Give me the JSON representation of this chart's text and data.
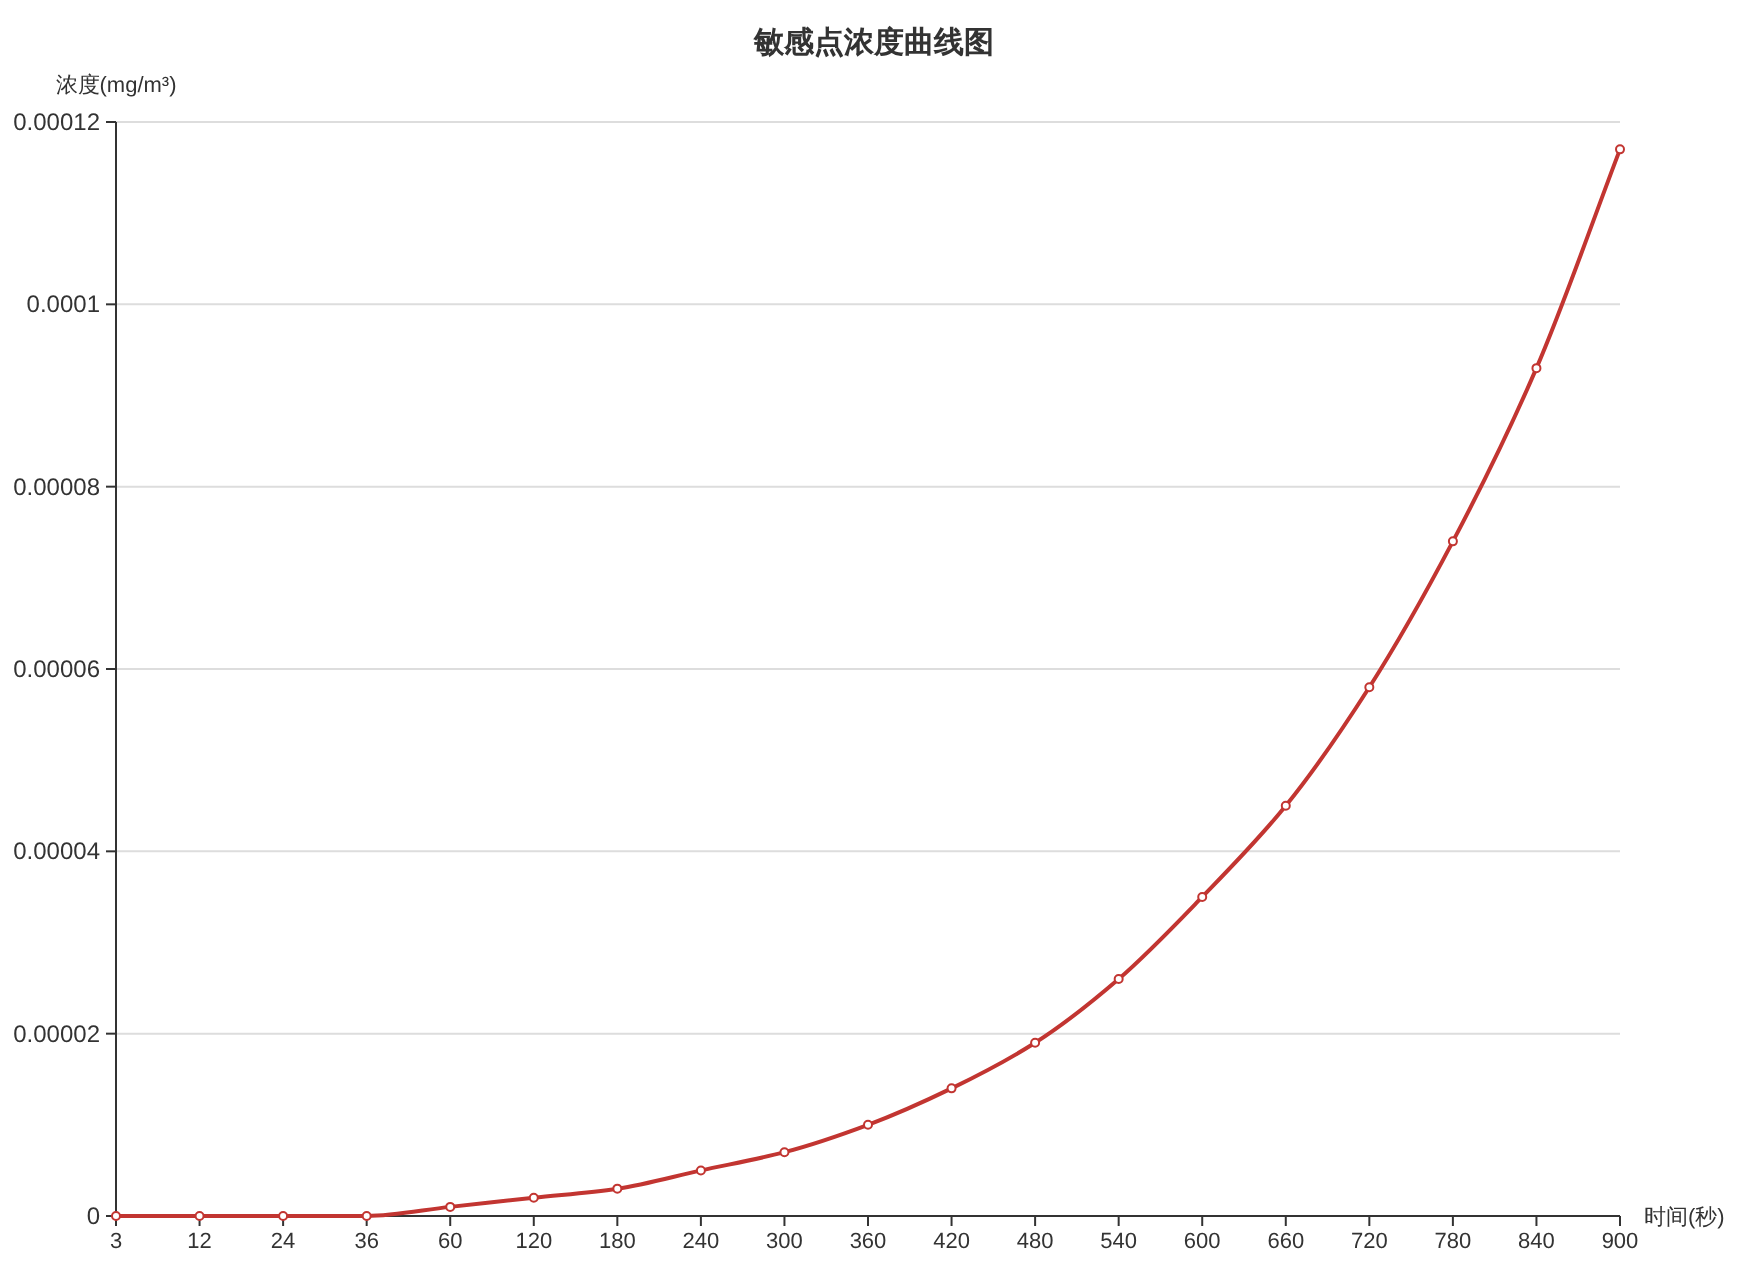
{
  "chart_data": {
    "type": "line",
    "title": "敏感点浓度曲线图",
    "xlabel": "时间(秒)",
    "ylabel": "浓度(mg/m³)",
    "categories": [
      "3",
      "12",
      "24",
      "36",
      "60",
      "120",
      "180",
      "240",
      "300",
      "360",
      "420",
      "480",
      "540",
      "600",
      "660",
      "720",
      "780",
      "840",
      "900"
    ],
    "series": [
      {
        "color": "#c23531",
        "values": [
          0,
          0,
          0,
          0,
          1e-06,
          2e-06,
          3e-06,
          5e-06,
          7e-06,
          1e-05,
          1.4e-05,
          1.9e-05,
          2.6e-05,
          3.5e-05,
          4.5e-05,
          5.8e-05,
          7.4e-05,
          9.3e-05,
          0.000117
        ]
      }
    ],
    "ylim": [
      0,
      0.00012
    ],
    "yticks": [
      0,
      {
        "value": 2e-05,
        "label": "0.00002"
      },
      {
        "value": 4e-05,
        "label": "0.00004"
      },
      {
        "value": 6e-05,
        "label": "0.00006"
      },
      {
        "value": 8e-05,
        "label": "0.00008"
      },
      {
        "value": 0.0001,
        "label": "0.0001"
      },
      {
        "value": 0.00012,
        "label": "0.00012"
      }
    ],
    "grid": "y",
    "marker": "circle",
    "line_style": "solid"
  }
}
